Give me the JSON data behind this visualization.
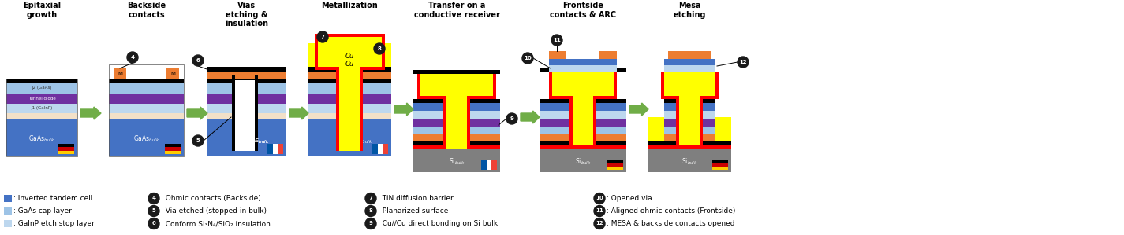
{
  "bg_color": "#ffffff",
  "arrow_color": "#70ad47",
  "colors": {
    "gaas_bulk": "#4472c4",
    "j2_light_blue": "#9dc3e6",
    "tunnel_purple": "#7030a0",
    "j1_light_blue2": "#bdd7ee",
    "etch_stop_cream": "#f2e0c8",
    "orange_contact": "#ed7d31",
    "black": "#000000",
    "yellow_cu": "#ffff00",
    "red_tin": "#ff0000",
    "gray_si": "#7f7f7f",
    "white": "#ffffff",
    "de_black": "#000000",
    "de_red": "#cc0000",
    "de_gold": "#ffcc00",
    "fr_blue": "#0055a4",
    "fr_white": "#ffffff",
    "fr_red": "#ef4135"
  },
  "step_titles": [
    "Epitaxial\ngrowth",
    "Backside\ncontacts",
    "Vias\netching &\ninsulation",
    "Metallization",
    "Transfer on a\nconductive receiver",
    "Frontside\ncontacts & ARC",
    "Mesa\netching"
  ],
  "legend_left_colors": [
    "#4472c4",
    "#9dc3e6",
    "#bdd7ee"
  ],
  "legend_left_texts": [
    ": Inverted tandem cell",
    ": GaAs cap layer",
    ": GaInP etch stop layer"
  ],
  "legend_col2": [
    [
      "4",
      ": Ohmic contacts (Backside)"
    ],
    [
      "5",
      ": Via etched (stopped in bulk)"
    ],
    [
      "6",
      ": Conform Si₃N₄/SiO₂ insulation"
    ]
  ],
  "legend_col3": [
    [
      "7",
      ": TiN diffusion barrier"
    ],
    [
      "8",
      ": Planarized surface"
    ],
    [
      "9",
      ": Cu//Cu direct bonding on Si bulk"
    ]
  ],
  "legend_col4": [
    [
      "10",
      ": Opened via"
    ],
    [
      "11",
      ": Aligned ohmic contacts (Frontside)"
    ],
    [
      "12",
      ": MESA & backside contacts opened"
    ]
  ]
}
